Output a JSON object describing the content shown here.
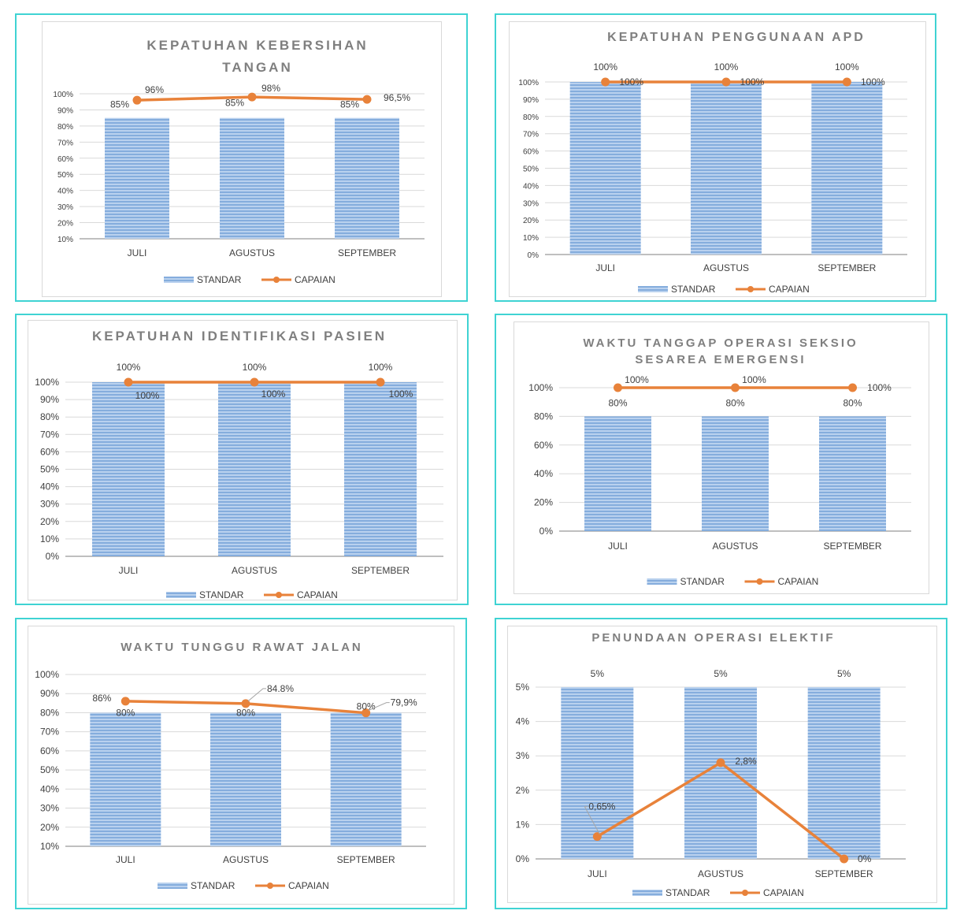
{
  "colors": {
    "standar": "#8fb4dd",
    "standar_line": "#5b8fcf",
    "capaian": "#e8823a",
    "text": "#404040",
    "title": "#7f7f7f",
    "grid": "#d9d9d9",
    "axis": "#bfbfbf"
  },
  "chart_data": [
    {
      "type": "bar",
      "title_lines": [
        "KEPATUHAN KEBERSIHAN",
        "TANGAN"
      ],
      "categories": [
        "JULI",
        "AGUSTUS",
        "SEPTEMBER"
      ],
      "ylim": [
        10,
        100
      ],
      "yticks": [
        10,
        20,
        30,
        40,
        50,
        60,
        70,
        80,
        90,
        100
      ],
      "ytick_labels": [
        "10%",
        "20%",
        "30%",
        "40%",
        "50%",
        "60%",
        "70%",
        "80%",
        "90%",
        "100%"
      ],
      "series": [
        {
          "name": "STANDAR",
          "kind": "bar",
          "values": [
            85,
            85,
            85
          ],
          "labels": [
            "85%",
            "85%",
            "85%"
          ]
        },
        {
          "name": "CAPAIAN",
          "kind": "line",
          "values": [
            96,
            98,
            96.5
          ],
          "labels": [
            "96%",
            "98%",
            "96,5%"
          ]
        }
      ],
      "legend": [
        "STANDAR",
        "CAPAIAN"
      ]
    },
    {
      "type": "bar",
      "title_lines": [
        "KEPATUHAN PENGGUNAAN APD"
      ],
      "categories": [
        "JULI",
        "AGUSTUS",
        "SEPTEMBER"
      ],
      "ylim": [
        0,
        100
      ],
      "yticks": [
        0,
        10,
        20,
        30,
        40,
        50,
        60,
        70,
        80,
        90,
        100
      ],
      "ytick_labels": [
        "0%",
        "10%",
        "20%",
        "30%",
        "40%",
        "50%",
        "60%",
        "70%",
        "80%",
        "90%",
        "100%"
      ],
      "series": [
        {
          "name": "STANDAR",
          "kind": "bar",
          "values": [
            100,
            100,
            100
          ],
          "labels": [
            "100%",
            "100%",
            "100%"
          ]
        },
        {
          "name": "CAPAIAN",
          "kind": "line",
          "values": [
            100,
            100,
            100
          ],
          "labels": [
            "100%",
            "100%",
            "100%"
          ]
        }
      ],
      "legend": [
        "STANDAR",
        "CAPAIAN"
      ]
    },
    {
      "type": "bar",
      "title_lines": [
        "KEPATUHAN IDENTIFIKASI PASIEN"
      ],
      "categories": [
        "JULI",
        "AGUSTUS",
        "SEPTEMBER"
      ],
      "ylim": [
        0,
        100
      ],
      "yticks": [
        0,
        10,
        20,
        30,
        40,
        50,
        60,
        70,
        80,
        90,
        100
      ],
      "ytick_labels": [
        "0%",
        "10%",
        "20%",
        "30%",
        "40%",
        "50%",
        "60%",
        "70%",
        "80%",
        "90%",
        "100%"
      ],
      "series": [
        {
          "name": "STANDAR",
          "kind": "bar",
          "values": [
            100,
            100,
            100
          ],
          "labels": [
            "100%",
            "100%",
            "100%"
          ]
        },
        {
          "name": "CAPAIAN",
          "kind": "line",
          "values": [
            100,
            100,
            100
          ],
          "labels": [
            "100%",
            "100%",
            "100%"
          ]
        }
      ],
      "legend": [
        "STANDAR",
        "CAPAIAN"
      ]
    },
    {
      "type": "bar",
      "title_lines": [
        "WAKTU TANGGAP OPERASI SEKSIO",
        "SESAREA EMERGENSI"
      ],
      "categories": [
        "JULI",
        "AGUSTUS",
        "SEPTEMBER"
      ],
      "ylim": [
        0,
        100
      ],
      "yticks": [
        0,
        20,
        40,
        60,
        80,
        100
      ],
      "ytick_labels": [
        "0%",
        "20%",
        "40%",
        "60%",
        "80%",
        "100%"
      ],
      "series": [
        {
          "name": "STANDAR",
          "kind": "bar",
          "values": [
            80,
            80,
            80
          ],
          "labels": [
            "80%",
            "80%",
            "80%"
          ]
        },
        {
          "name": "CAPAIAN",
          "kind": "line",
          "values": [
            100,
            100,
            100
          ],
          "labels": [
            "100%",
            "100%",
            "100%"
          ]
        }
      ],
      "legend": [
        "STANDAR",
        "CAPAIAN"
      ]
    },
    {
      "type": "bar",
      "title_lines": [
        "WAKTU TUNGGU RAWAT JALAN"
      ],
      "categories": [
        "JULI",
        "AGUSTUS",
        "SEPTEMBER"
      ],
      "ylim": [
        10,
        100
      ],
      "yticks": [
        10,
        20,
        30,
        40,
        50,
        60,
        70,
        80,
        90,
        100
      ],
      "ytick_labels": [
        "10%",
        "20%",
        "30%",
        "40%",
        "50%",
        "60%",
        "70%",
        "80%",
        "90%",
        "100%"
      ],
      "series": [
        {
          "name": "STANDAR",
          "kind": "bar",
          "values": [
            80,
            80,
            80
          ],
          "labels": [
            "80%",
            "80%",
            "80%"
          ]
        },
        {
          "name": "CAPAIAN",
          "kind": "line",
          "values": [
            86,
            84.8,
            79.9
          ],
          "labels": [
            "86%",
            "84.8%",
            "79,9%"
          ]
        }
      ],
      "legend": [
        "STANDAR",
        "CAPAIAN"
      ]
    },
    {
      "type": "bar",
      "title_lines": [
        "PENUNDAAN OPERASI ELEKTIF"
      ],
      "categories": [
        "JULI",
        "AGUSTUS",
        "SEPTEMBER"
      ],
      "ylim": [
        0,
        5
      ],
      "yticks": [
        0,
        1,
        2,
        3,
        4,
        5
      ],
      "ytick_labels": [
        "0%",
        "1%",
        "2%",
        "3%",
        "4%",
        "5%"
      ],
      "series": [
        {
          "name": "STANDAR",
          "kind": "bar",
          "values": [
            5,
            5,
            5
          ],
          "labels": [
            "5%",
            "5%",
            "5%"
          ]
        },
        {
          "name": "CAPAIAN",
          "kind": "line",
          "values": [
            0.65,
            2.8,
            0
          ],
          "labels": [
            "0,65%",
            "2,8%",
            "0%"
          ]
        }
      ],
      "legend": [
        "STANDAR",
        "CAPAIAN"
      ]
    }
  ]
}
